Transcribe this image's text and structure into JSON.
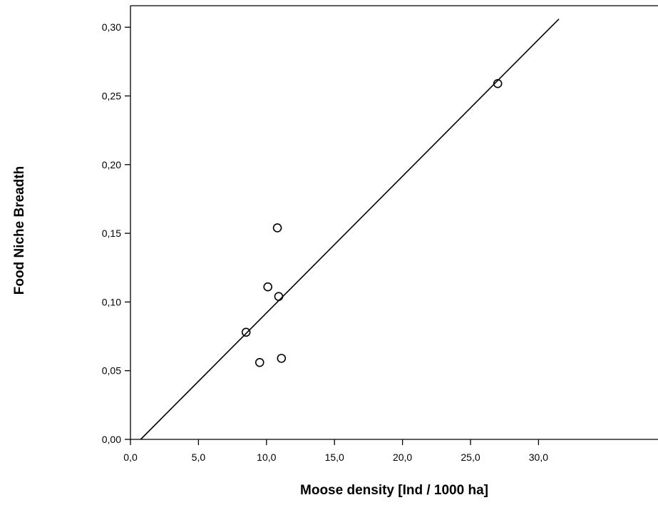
{
  "chart_data": {
    "type": "scatter",
    "title": "",
    "xlabel": "Moose density [Ind / 1000 ha]",
    "ylabel": "Food Niche Breadth",
    "xlim": [
      0,
      31.5
    ],
    "ylim": [
      0,
      0.32
    ],
    "x_ticks": [
      0,
      5,
      10,
      15,
      20,
      25,
      30
    ],
    "x_tick_labels": [
      "0,0",
      "5,0",
      "10,0",
      "15,0",
      "20,0",
      "25,0",
      "30,0"
    ],
    "y_ticks": [
      0,
      0.05,
      0.1,
      0.15,
      0.2,
      0.25,
      0.3
    ],
    "y_tick_labels": [
      "0,00",
      "0,05",
      "0,10",
      "0,15",
      "0,20",
      "0,25",
      "0,30"
    ],
    "grid": false,
    "legend": "none",
    "series": [
      {
        "marker": "open-circle",
        "points": [
          {
            "x": 8.5,
            "y": 0.078
          },
          {
            "x": 9.5,
            "y": 0.056
          },
          {
            "x": 10.1,
            "y": 0.111
          },
          {
            "x": 10.8,
            "y": 0.154
          },
          {
            "x": 10.9,
            "y": 0.104
          },
          {
            "x": 11.1,
            "y": 0.059
          },
          {
            "x": 27.0,
            "y": 0.259
          }
        ]
      }
    ],
    "fit_line": {
      "type": "linear",
      "from": {
        "x": 0.75,
        "y": 0.0
      },
      "to": {
        "x": 31.5,
        "y": 0.306
      }
    },
    "colors": {
      "marks": "#000000",
      "background": "#ffffff"
    }
  }
}
